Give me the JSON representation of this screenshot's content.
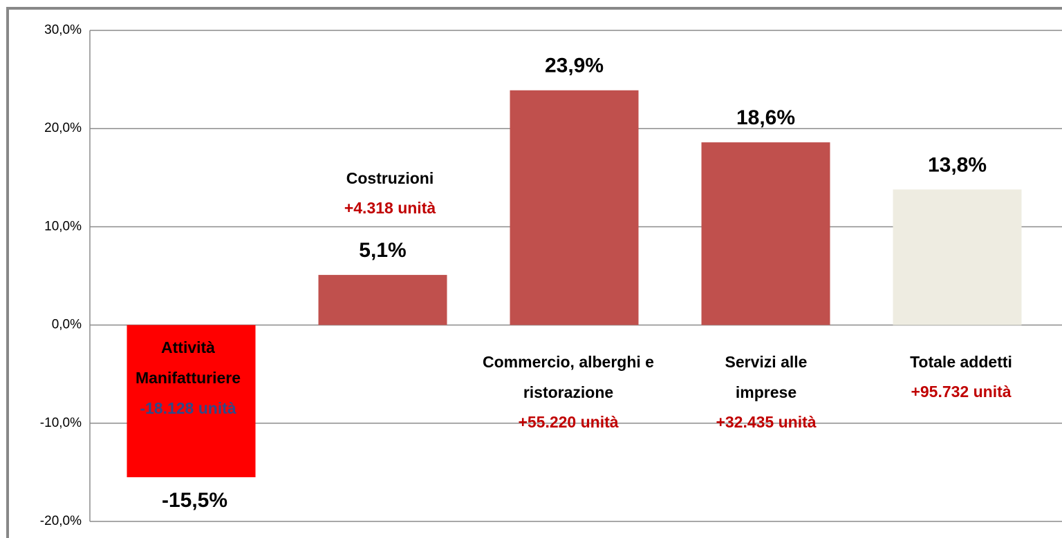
{
  "chart_data": {
    "type": "bar",
    "categories": [
      "Attività Manifatturiere",
      "Costruzioni",
      "Commercio, alberghi e ristorazione",
      "Servizi alle imprese",
      "Totale addetti"
    ],
    "values": [
      -15.5,
      5.1,
      23.9,
      18.6,
      13.8
    ],
    "value_labels": [
      "-15,5%",
      "5,1%",
      "23,9%",
      "18,6%",
      "13,8%"
    ],
    "change_labels": [
      "-18.128 unità",
      "+4.318 unità",
      "+55.220 unità",
      "+32.435 unità",
      "+95.732 unità"
    ],
    "colors": [
      "#ff0000",
      "#c0504d",
      "#c0504d",
      "#c0504d",
      "#eeece1"
    ],
    "ylim": [
      -20,
      30
    ],
    "yticks": [
      {
        "value": -20,
        "label": "-20,0%"
      },
      {
        "value": -10,
        "label": "-10,0%"
      },
      {
        "value": 0,
        "label": "0,0%"
      },
      {
        "value": 10,
        "label": "10,0%"
      },
      {
        "value": 20,
        "label": "20,0%"
      },
      {
        "value": 30,
        "label": "30,0%"
      }
    ],
    "grid": true
  }
}
